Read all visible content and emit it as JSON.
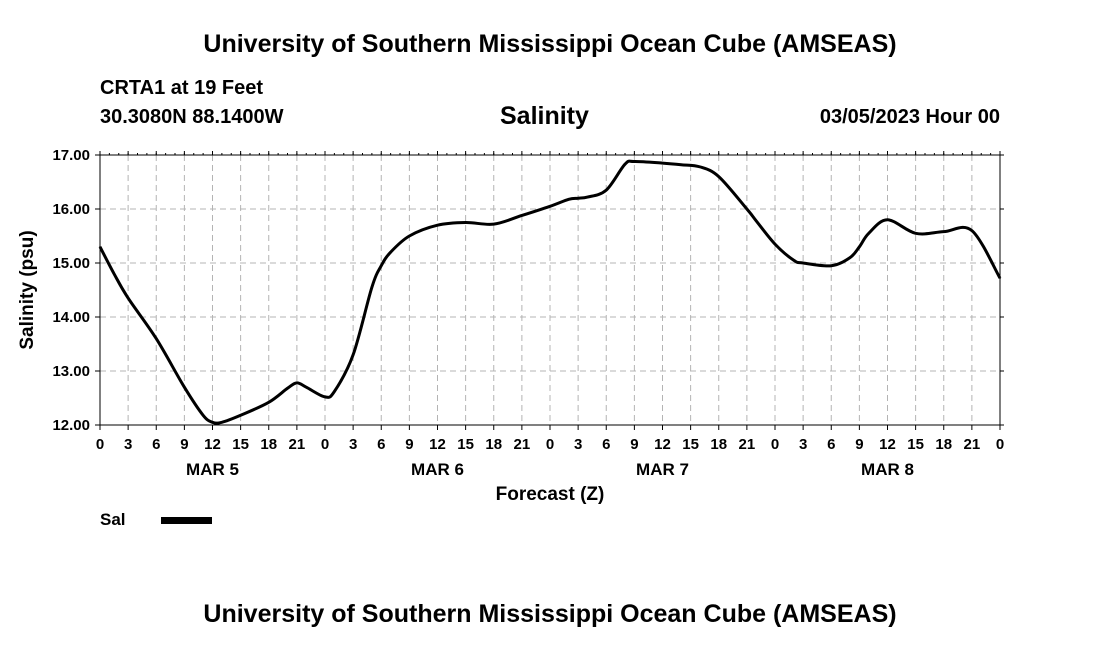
{
  "header": {
    "main_title": "University of Southern Mississippi Ocean Cube (AMSEAS)",
    "station_name": "CRTA1 at 19 Feet",
    "station_coords": "30.3080N  88.1400W",
    "run_time": "03/05/2023 Hour 00"
  },
  "footer": {
    "title": "University of Southern Mississippi Ocean Cube (AMSEAS)"
  },
  "legend": {
    "label": "Sal",
    "color": "#000000"
  },
  "chart_data": {
    "type": "line",
    "title": "Salinity",
    "xlabel": "Forecast (Z)",
    "ylabel": "Salinity (psu)",
    "x_unit": "forecast hours since 03/05/2023 00Z",
    "xlim": [
      0,
      96
    ],
    "ylim": [
      12,
      17
    ],
    "yticks": [
      12,
      13,
      14,
      15,
      16,
      17
    ],
    "ytick_labels": [
      "12.00",
      "13.00",
      "14.00",
      "15.00",
      "16.00",
      "17.00"
    ],
    "xticks": [
      0,
      3,
      6,
      9,
      12,
      15,
      18,
      21,
      24,
      27,
      30,
      33,
      36,
      39,
      42,
      45,
      48,
      51,
      54,
      57,
      60,
      63,
      66,
      69,
      72,
      75,
      78,
      81,
      84,
      87,
      90,
      93,
      96
    ],
    "xtick_labels": [
      "0",
      "3",
      "6",
      "9",
      "12",
      "15",
      "18",
      "21",
      "0",
      "3",
      "6",
      "9",
      "12",
      "15",
      "18",
      "21",
      "0",
      "3",
      "6",
      "9",
      "12",
      "15",
      "18",
      "21",
      "0",
      "3",
      "6",
      "9",
      "12",
      "15",
      "18",
      "21",
      "0"
    ],
    "day_labels": [
      {
        "label": "MAR 5",
        "at": 12
      },
      {
        "label": "MAR 6",
        "at": 36
      },
      {
        "label": "MAR 7",
        "at": 60
      },
      {
        "label": "MAR 8",
        "at": 84
      }
    ],
    "grid": true,
    "series": [
      {
        "name": "Sal",
        "x": [
          0,
          1.5,
          3,
          6,
          9,
          11,
          12,
          13,
          15,
          18,
          20,
          21,
          22,
          24,
          25,
          27,
          29,
          30,
          31,
          33,
          36,
          39,
          42,
          45,
          48,
          50,
          51,
          52,
          54,
          56,
          57,
          60,
          62,
          64,
          66,
          69,
          70,
          72,
          74,
          75,
          78,
          80,
          81,
          82,
          84,
          87,
          90,
          93,
          96
        ],
        "y": [
          15.3,
          14.8,
          14.35,
          13.6,
          12.7,
          12.18,
          12.05,
          12.05,
          12.18,
          12.42,
          12.68,
          12.78,
          12.7,
          12.52,
          12.62,
          13.3,
          14.55,
          14.95,
          15.2,
          15.5,
          15.7,
          15.75,
          15.72,
          15.88,
          16.05,
          16.18,
          16.2,
          16.22,
          16.35,
          16.83,
          16.88,
          16.85,
          16.82,
          16.78,
          16.6,
          16.0,
          15.78,
          15.35,
          15.05,
          15.0,
          14.95,
          15.1,
          15.3,
          15.55,
          15.8,
          15.55,
          15.58,
          15.6,
          14.72
        ]
      }
    ]
  }
}
